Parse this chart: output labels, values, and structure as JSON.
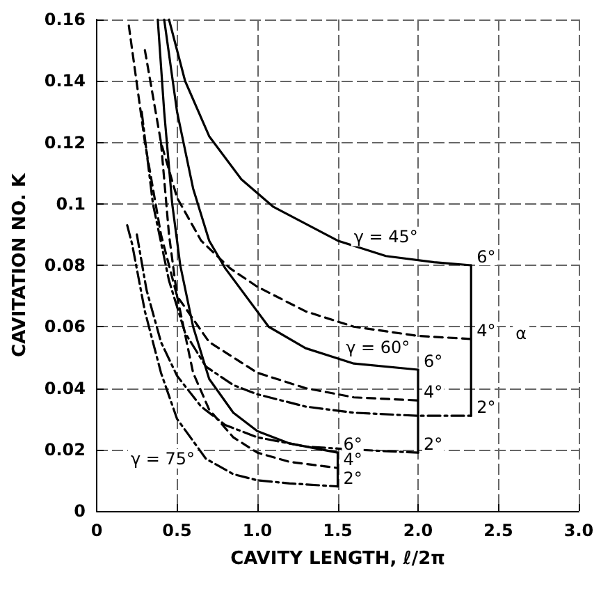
{
  "chart_data": {
    "type": "line",
    "xlabel": "CAVITY LENGTH, ℓ/2π",
    "ylabel": "CAVITATION NO. K",
    "xlim": [
      0,
      3
    ],
    "xticks": [
      {
        "value": 0,
        "label": "0"
      },
      {
        "value": 0.5,
        "label": "0.5"
      },
      {
        "value": 1,
        "label": "1.0"
      },
      {
        "value": 1.5,
        "label": "1.5"
      },
      {
        "value": 2,
        "label": "2.0"
      },
      {
        "value": 2.5,
        "label": "2.5"
      },
      {
        "value": 3,
        "label": "3.0"
      }
    ],
    "ylim": [
      0,
      0.16
    ],
    "yticks": [
      0,
      0.02,
      0.04,
      0.06,
      0.08,
      0.1,
      0.12,
      0.14,
      0.16
    ],
    "grid": true,
    "marker": "none",
    "legend": false,
    "series": [
      {
        "name": "6°",
        "color": "#000000",
        "line_style": "solid",
        "x": [
          0.45,
          0.55,
          0.7,
          0.9,
          1.1,
          1.5,
          1.8,
          2.1,
          2.33
        ],
        "values": [
          0.16,
          0.14,
          0.122,
          0.108,
          0.099,
          0.088,
          0.083,
          0.081,
          0.08
        ]
      },
      {
        "name": "4°",
        "color": "#000000",
        "line_style": "dashed",
        "x": [
          0.3,
          0.4,
          0.5,
          0.65,
          0.83,
          1.0,
          1.3,
          1.6,
          2.0,
          2.33
        ],
        "values": [
          0.15,
          0.12,
          0.102,
          0.088,
          0.079,
          0.073,
          0.065,
          0.06,
          0.057,
          0.056
        ]
      },
      {
        "name": "2°",
        "color": "#000000",
        "line_style": "dashdot",
        "x": [
          0.28,
          0.35,
          0.45,
          0.55,
          0.68,
          0.85,
          1.0,
          1.3,
          1.6,
          2.0,
          2.33
        ],
        "values": [
          0.13,
          0.1,
          0.075,
          0.058,
          0.047,
          0.041,
          0.038,
          0.034,
          0.032,
          0.031,
          0.031
        ]
      },
      {
        "color": "#000000",
        "line_style": "solid",
        "x": [
          2.33,
          2.33
        ],
        "values": [
          0.08,
          0.031
        ]
      },
      {
        "name": "6°",
        "color": "#000000",
        "line_style": "solid",
        "x": [
          0.42,
          0.5,
          0.6,
          0.7,
          0.8,
          1.07,
          1.3,
          1.6,
          2.0
        ],
        "values": [
          0.16,
          0.13,
          0.105,
          0.088,
          0.079,
          0.06,
          0.053,
          0.048,
          0.046
        ]
      },
      {
        "name": "4°",
        "color": "#000000",
        "line_style": "dashed",
        "x": [
          0.2,
          0.3,
          0.4,
          0.5,
          0.7,
          1.0,
          1.3,
          1.6,
          2.0
        ],
        "values": [
          0.158,
          0.12,
          0.09,
          0.07,
          0.055,
          0.045,
          0.04,
          0.037,
          0.036
        ]
      },
      {
        "name": "2°",
        "color": "#000000",
        "line_style": "dashdot",
        "x": [
          0.25,
          0.31,
          0.4,
          0.5,
          0.65,
          0.8,
          1.0,
          1.3,
          1.6,
          2.0
        ],
        "values": [
          0.09,
          0.072,
          0.055,
          0.044,
          0.034,
          0.028,
          0.024,
          0.021,
          0.02,
          0.019
        ]
      },
      {
        "color": "#000000",
        "line_style": "solid",
        "x": [
          2.0,
          2.0
        ],
        "values": [
          0.046,
          0.019
        ]
      },
      {
        "name": "6°",
        "color": "#000000",
        "line_style": "solid",
        "x": [
          0.38,
          0.42,
          0.47,
          0.52,
          0.6,
          0.7,
          0.85,
          1.0,
          1.2,
          1.5
        ],
        "values": [
          0.16,
          0.13,
          0.1,
          0.08,
          0.06,
          0.043,
          0.032,
          0.026,
          0.022,
          0.019
        ]
      },
      {
        "name": "4°",
        "color": "#000000",
        "line_style": "dashed",
        "x": [
          0.4,
          0.45,
          0.5,
          0.6,
          0.7,
          0.85,
          1.0,
          1.2,
          1.5
        ],
        "values": [
          0.12,
          0.09,
          0.07,
          0.045,
          0.033,
          0.024,
          0.019,
          0.016,
          0.014
        ]
      },
      {
        "name": "2°",
        "color": "#000000",
        "line_style": "dashdot",
        "x": [
          0.19,
          0.22,
          0.3,
          0.4,
          0.5,
          0.68,
          0.85,
          1.0,
          1.2,
          1.5
        ],
        "values": [
          0.093,
          0.087,
          0.065,
          0.045,
          0.03,
          0.017,
          0.012,
          0.01,
          0.009,
          0.008
        ]
      },
      {
        "color": "#000000",
        "line_style": "solid",
        "x": [
          1.5,
          1.5
        ],
        "values": [
          0.019,
          0.008
        ]
      }
    ],
    "annotations": [
      {
        "text": "γ = 45°",
        "x": 1.8,
        "y": 0.083
      },
      {
        "text": "γ = 60°",
        "x": 1.75,
        "y": 0.047
      },
      {
        "text": "γ = 75°",
        "x": 0.68,
        "y": 0.017
      },
      {
        "text": "α",
        "x": 2.33,
        "y": 0.056
      }
    ]
  }
}
